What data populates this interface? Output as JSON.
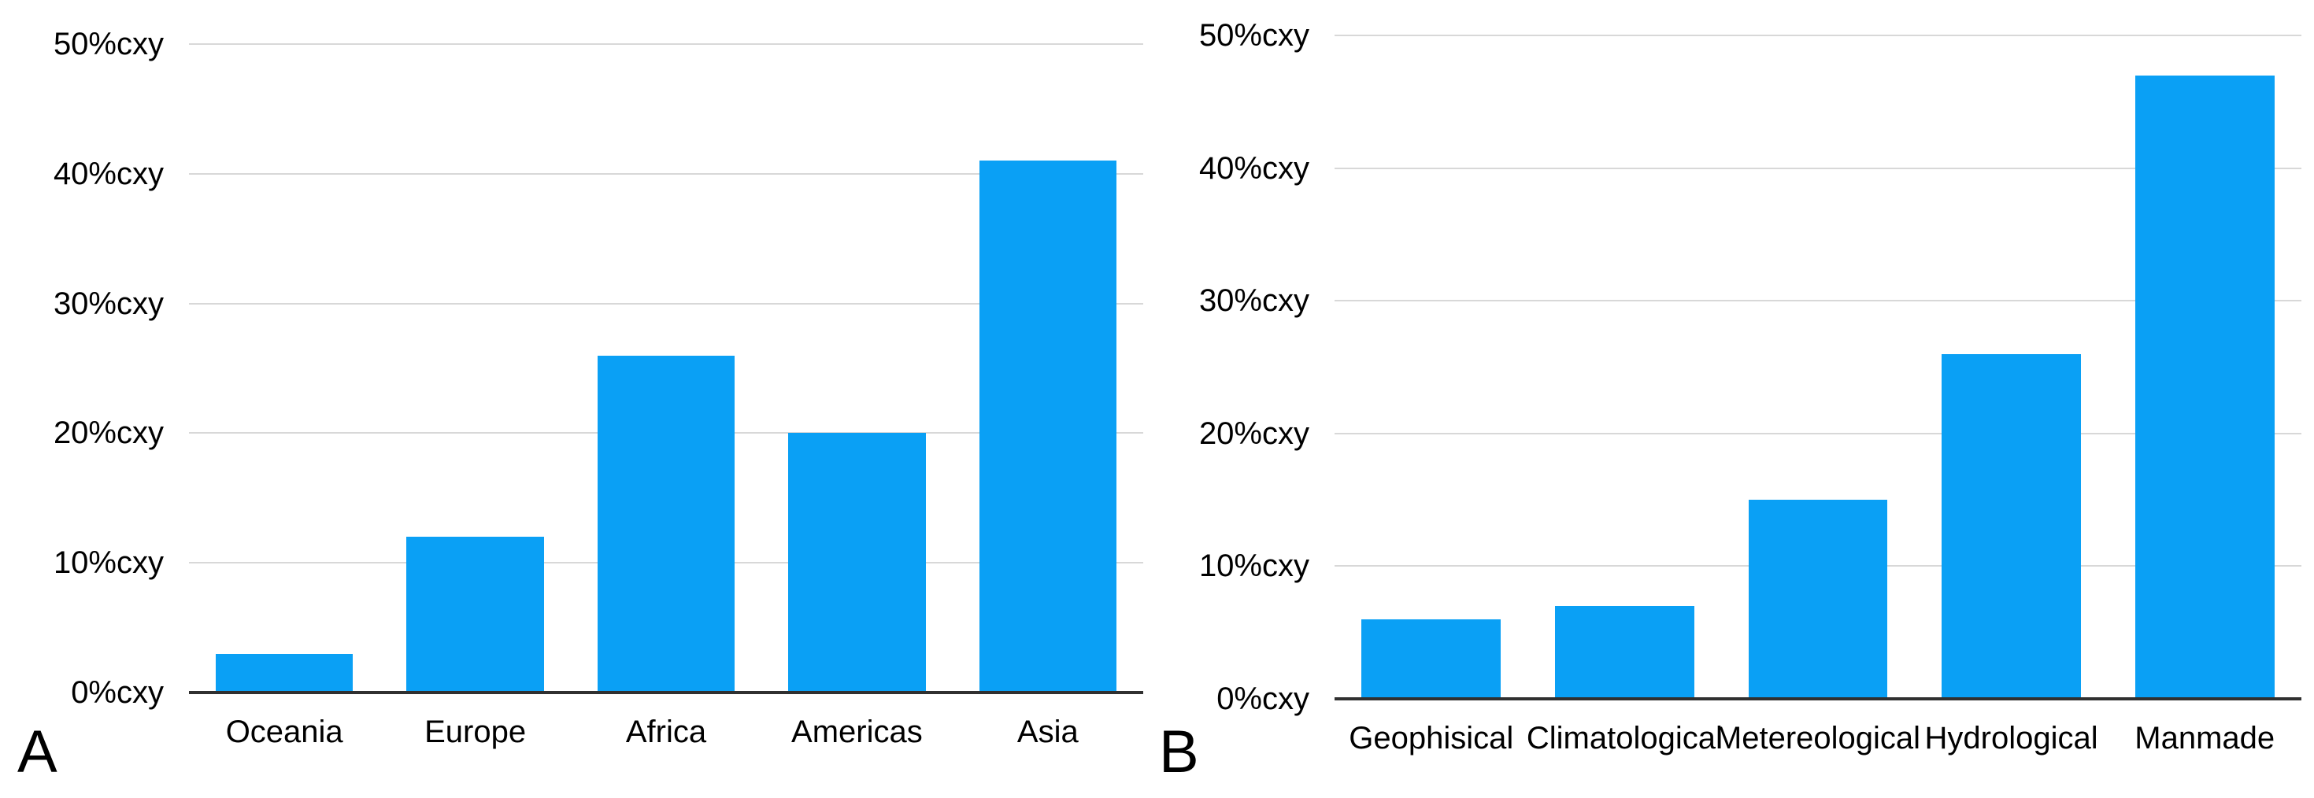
{
  "figure": {
    "background": "#ffffff"
  },
  "colors": {
    "bar": "#0aa0f5",
    "gridline": "#d8d8d8",
    "axis_line": "#303030",
    "text": "#000000"
  },
  "chart_data": [
    {
      "panel_label": "A",
      "type": "bar",
      "title": "",
      "xlabel": "",
      "ylabel": "",
      "categories": [
        "Oceania",
        "Europe",
        "Africa",
        "Americas",
        "Asia"
      ],
      "values": [
        3,
        12,
        26,
        20,
        41
      ],
      "value_unit": "%",
      "ylim": [
        0,
        50
      ],
      "y_ticks": [
        {
          "value": 0,
          "label": "0%cxy"
        },
        {
          "value": 10,
          "label": "10%cxy"
        },
        {
          "value": 20,
          "label": "20%cxy"
        },
        {
          "value": 30,
          "label": "30%cxy"
        },
        {
          "value": 40,
          "label": "40%cxy"
        },
        {
          "value": 50,
          "label": "50%cxy"
        }
      ],
      "grid": "horizontal",
      "legend": "none",
      "bar_color": "#0aa0f5"
    },
    {
      "panel_label": "B",
      "type": "bar",
      "title": "",
      "xlabel": "",
      "ylabel": "",
      "categories": [
        "Geophisical",
        "Climatological",
        "Metereological",
        "Hydrological",
        "Manmade"
      ],
      "values": [
        6,
        7,
        15,
        26,
        47
      ],
      "value_unit": "%",
      "ylim": [
        0,
        50
      ],
      "y_ticks": [
        {
          "value": 0,
          "label": "0%cxy"
        },
        {
          "value": 10,
          "label": "10%cxy"
        },
        {
          "value": 20,
          "label": "20%cxy"
        },
        {
          "value": 30,
          "label": "30%cxy"
        },
        {
          "value": 40,
          "label": "40%cxy"
        },
        {
          "value": 50,
          "label": "50%cxy"
        }
      ],
      "grid": "horizontal",
      "legend": "none",
      "bar_color": "#0aa0f5"
    }
  ]
}
